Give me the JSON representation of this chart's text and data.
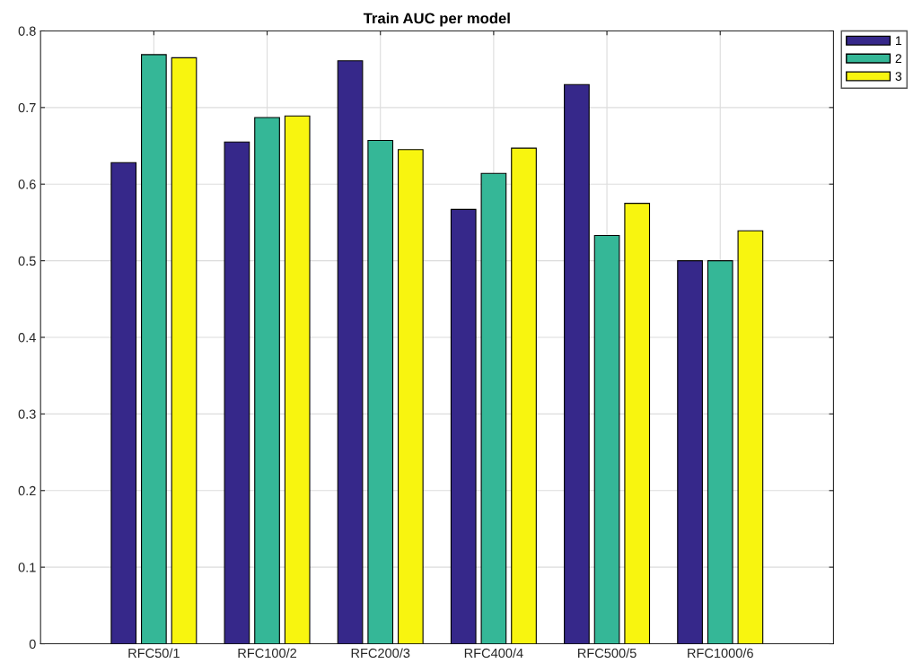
{
  "chart_data": {
    "type": "bar",
    "title": "Train AUC per model",
    "categories": [
      "RFC50/1",
      "RFC100/2",
      "RFC200/3",
      "RFC400/4",
      "RFC500/5",
      "RFC1000/6"
    ],
    "series": [
      {
        "name": "1",
        "color": "#36288a",
        "values": [
          0.628,
          0.655,
          0.761,
          0.567,
          0.73,
          0.5
        ]
      },
      {
        "name": "2",
        "color": "#35b797",
        "values": [
          0.769,
          0.687,
          0.657,
          0.614,
          0.533,
          0.5
        ]
      },
      {
        "name": "3",
        "color": "#f8f50f",
        "values": [
          0.765,
          0.689,
          0.645,
          0.647,
          0.575,
          0.539
        ]
      }
    ],
    "ylim": [
      0,
      0.8
    ],
    "yticks": [
      0,
      0.1,
      0.2,
      0.3,
      0.4,
      0.5,
      0.6,
      0.7,
      0.8
    ],
    "grid": true,
    "legend": "top right"
  }
}
